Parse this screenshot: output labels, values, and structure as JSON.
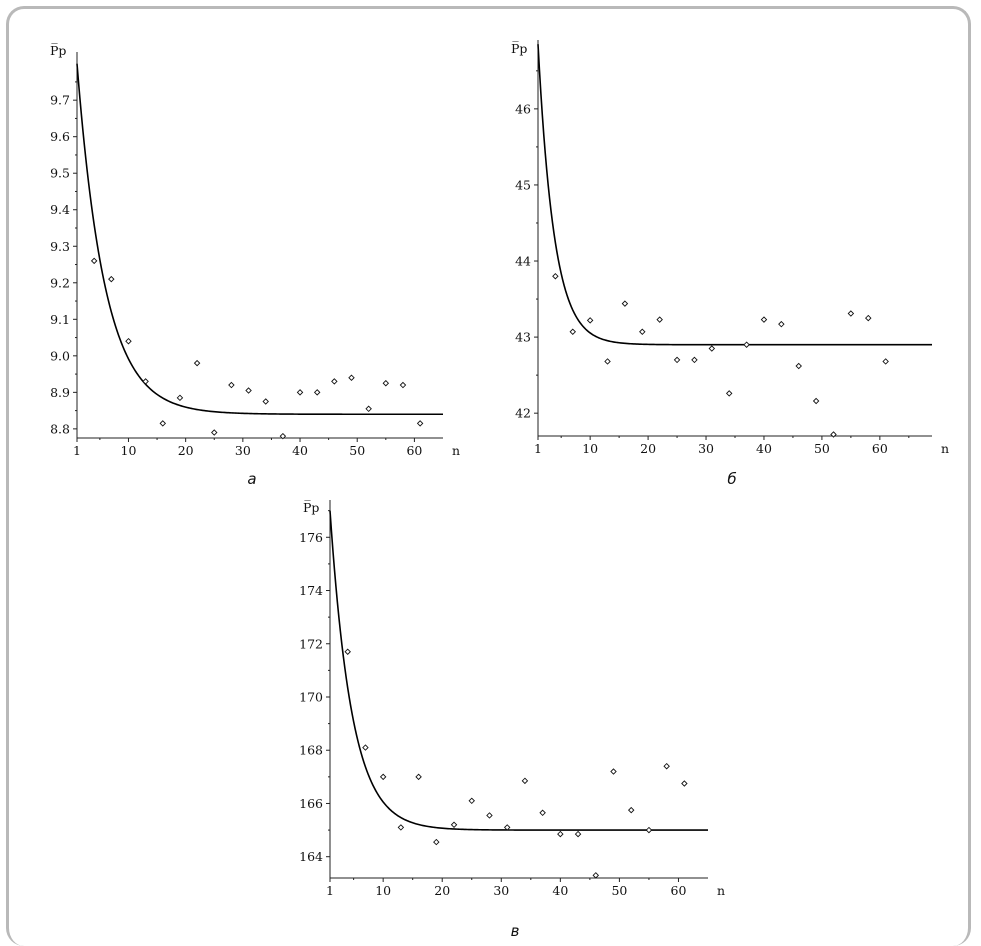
{
  "chart_data": [
    {
      "type": "scatter",
      "panel_label": "а",
      "ylabel": "P̅р",
      "xlabel": "n",
      "xlim": [
        1,
        65
      ],
      "ylim": [
        8.775,
        9.81
      ],
      "xticks": [
        1,
        10,
        20,
        30,
        40,
        50,
        60
      ],
      "yticks": [
        8.8,
        8.9,
        9.0,
        9.1,
        9.2,
        9.3,
        9.4,
        9.5,
        9.6,
        9.7
      ],
      "ytick_labels": [
        "8.8",
        "8.9",
        "9.0",
        "9.1",
        "9.2",
        "9.3",
        "9.4",
        "9.5",
        "9.6",
        "9.7"
      ],
      "points": [
        [
          4,
          9.26
        ],
        [
          7,
          9.21
        ],
        [
          10,
          9.04
        ],
        [
          13,
          8.93
        ],
        [
          16,
          8.815
        ],
        [
          19,
          8.885
        ],
        [
          22,
          8.98
        ],
        [
          25,
          8.79
        ],
        [
          28,
          8.92
        ],
        [
          31,
          8.905
        ],
        [
          34,
          8.875
        ],
        [
          37,
          8.78
        ],
        [
          40,
          8.9
        ],
        [
          43,
          8.9
        ],
        [
          46,
          8.93
        ],
        [
          49,
          8.94
        ],
        [
          52,
          8.855
        ],
        [
          55,
          8.925
        ],
        [
          58,
          8.92
        ],
        [
          61,
          8.815
        ]
      ],
      "fit_curve": {
        "asymptote": 8.84,
        "start_x": 1,
        "start_y": 9.8,
        "decay": 0.205
      }
    },
    {
      "type": "scatter",
      "panel_label": "б",
      "ylabel": "P̅р",
      "xlabel": "n",
      "xlim": [
        1,
        69
      ],
      "ylim": [
        41.7,
        46.8
      ],
      "xticks": [
        1,
        10,
        20,
        30,
        40,
        50,
        60
      ],
      "yticks": [
        42,
        43,
        44,
        45,
        46
      ],
      "ytick_labels": [
        "42",
        "43",
        "44",
        "45",
        "46"
      ],
      "points": [
        [
          4,
          43.8
        ],
        [
          7,
          43.07
        ],
        [
          10,
          43.22
        ],
        [
          13,
          42.68
        ],
        [
          16,
          43.44
        ],
        [
          19,
          43.07
        ],
        [
          22,
          43.23
        ],
        [
          25,
          42.7
        ],
        [
          28,
          42.7
        ],
        [
          31,
          42.85
        ],
        [
          34,
          42.26
        ],
        [
          37,
          42.9
        ],
        [
          40,
          43.23
        ],
        [
          43,
          43.17
        ],
        [
          46,
          42.62
        ],
        [
          49,
          42.16
        ],
        [
          52,
          41.72
        ],
        [
          55,
          43.31
        ],
        [
          58,
          43.25
        ],
        [
          61,
          42.68
        ]
      ],
      "fit_curve": {
        "asymptote": 42.9,
        "start_x": 1,
        "start_y": 46.85,
        "decay": 0.36
      }
    },
    {
      "type": "scatter",
      "panel_label": "в",
      "ylabel": "P̅р",
      "xlabel": "n",
      "xlim": [
        1,
        65
      ],
      "ylim": [
        163.2,
        177.1
      ],
      "xticks": [
        1,
        10,
        20,
        30,
        40,
        50,
        60
      ],
      "yticks": [
        164,
        166,
        168,
        170,
        172,
        174,
        176
      ],
      "ytick_labels": [
        "164",
        "166",
        "168",
        "170",
        "172",
        "174",
        "176"
      ],
      "points": [
        [
          4,
          171.7
        ],
        [
          7,
          168.1
        ],
        [
          10,
          167.0
        ],
        [
          13,
          165.1
        ],
        [
          16,
          167.0
        ],
        [
          19,
          164.55
        ],
        [
          22,
          165.2
        ],
        [
          25,
          166.1
        ],
        [
          28,
          165.55
        ],
        [
          31,
          165.1
        ],
        [
          34,
          166.85
        ],
        [
          37,
          165.65
        ],
        [
          40,
          164.85
        ],
        [
          43,
          164.85
        ],
        [
          46,
          163.3
        ],
        [
          49,
          167.2
        ],
        [
          52,
          165.75
        ],
        [
          55,
          165.0
        ],
        [
          58,
          167.4
        ],
        [
          61,
          166.75
        ]
      ],
      "fit_curve": {
        "asymptote": 165.0,
        "start_x": 1,
        "start_y": 177.0,
        "decay": 0.27
      }
    }
  ]
}
